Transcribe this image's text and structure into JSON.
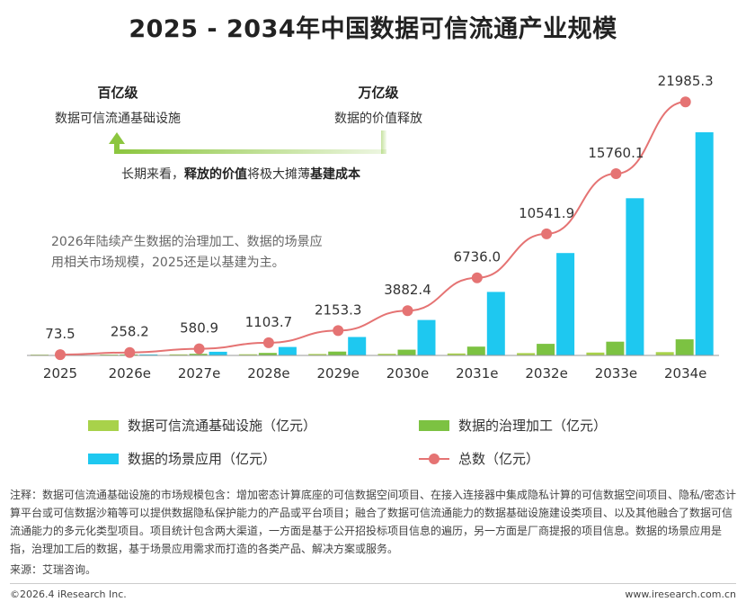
{
  "title": "2025 - 2034年中国数据可信流通产业规模",
  "annotations": {
    "left_heading": "百亿级",
    "left_sub": "数据可信流通基础设施",
    "right_heading": "万亿级",
    "right_sub": "数据的价值释放",
    "longterm_pre": "长期来看，",
    "longterm_b1": "释放的价值",
    "longterm_mid": "将极大摊薄",
    "longterm_b2": "基建成本",
    "paragraph": "2026年陆续产生数据的治理加工、数据的场景应用相关市场规模，2025还是以基建为主。"
  },
  "colors": {
    "infra": "#a8d24a",
    "governance": "#7cc242",
    "application": "#1ec8f0",
    "total": "#e57373",
    "arrow": "#8cc63f"
  },
  "chart_data": {
    "type": "bar",
    "categories": [
      "2025",
      "2026e",
      "2027e",
      "2028e",
      "2029e",
      "2030e",
      "2031e",
      "2032e",
      "2033e",
      "2034e"
    ],
    "series": [
      {
        "name": "数据可信流通基础设施（亿元）",
        "type": "bar",
        "values": [
          73.5,
          80,
          95,
          110,
          130,
          150,
          180,
          210,
          260,
          300
        ]
      },
      {
        "name": "数据的治理加工（亿元）",
        "type": "bar",
        "values": [
          0,
          90,
          150,
          230,
          350,
          520,
          800,
          1050,
          1250,
          1460
        ]
      },
      {
        "name": "数据的场景应用（亿元）",
        "type": "bar",
        "values": [
          0,
          88,
          336,
          764,
          1673,
          3212,
          5756,
          9282,
          14250,
          20225
        ]
      },
      {
        "name": "总数（亿元）",
        "type": "line",
        "values": [
          73.5,
          258.2,
          580.9,
          1103.7,
          2153.3,
          3882.4,
          6736.0,
          10541.9,
          15760.1,
          21985.3
        ]
      }
    ],
    "total_labels": [
      "73.5",
      "258.2",
      "580.9",
      "1103.7",
      "2153.3",
      "3882.4",
      "6736.0",
      "10541.9",
      "15760.1",
      "21985.3"
    ],
    "ylim": [
      0,
      22000
    ]
  },
  "legend": {
    "infra": "数据可信流通基础设施（亿元）",
    "governance": "数据的治理加工（亿元）",
    "application": "数据的场景应用（亿元）",
    "total": "总数（亿元）"
  },
  "note": "注释：数据可信流通基础设施的市场规模包含：增加密态计算底座的可信数据空间项目、在接入连接器中集成隐私计算的可信数据空间项目、隐私/密态计算平台或可信数据沙箱等可以提供数据隐私保护能力的产品或平台项目；融合了数据可信流通能力的数据基础设施建设类项目、以及其他融合了数据可信流通能力的多元化类型项目。项目统计包含两大渠道，一方面是基于公开招投标项目信息的遍历，另一方面是厂商提报的项目信息。数据的场景应用是指，治理加工后的数据，基于场景应用需求而打造的各类产品、解决方案或服务。",
  "source": "来源：艾瑞咨询。",
  "footer_left": "©2026.4 iResearch Inc.",
  "footer_right": "www.iresearch.com.cn"
}
